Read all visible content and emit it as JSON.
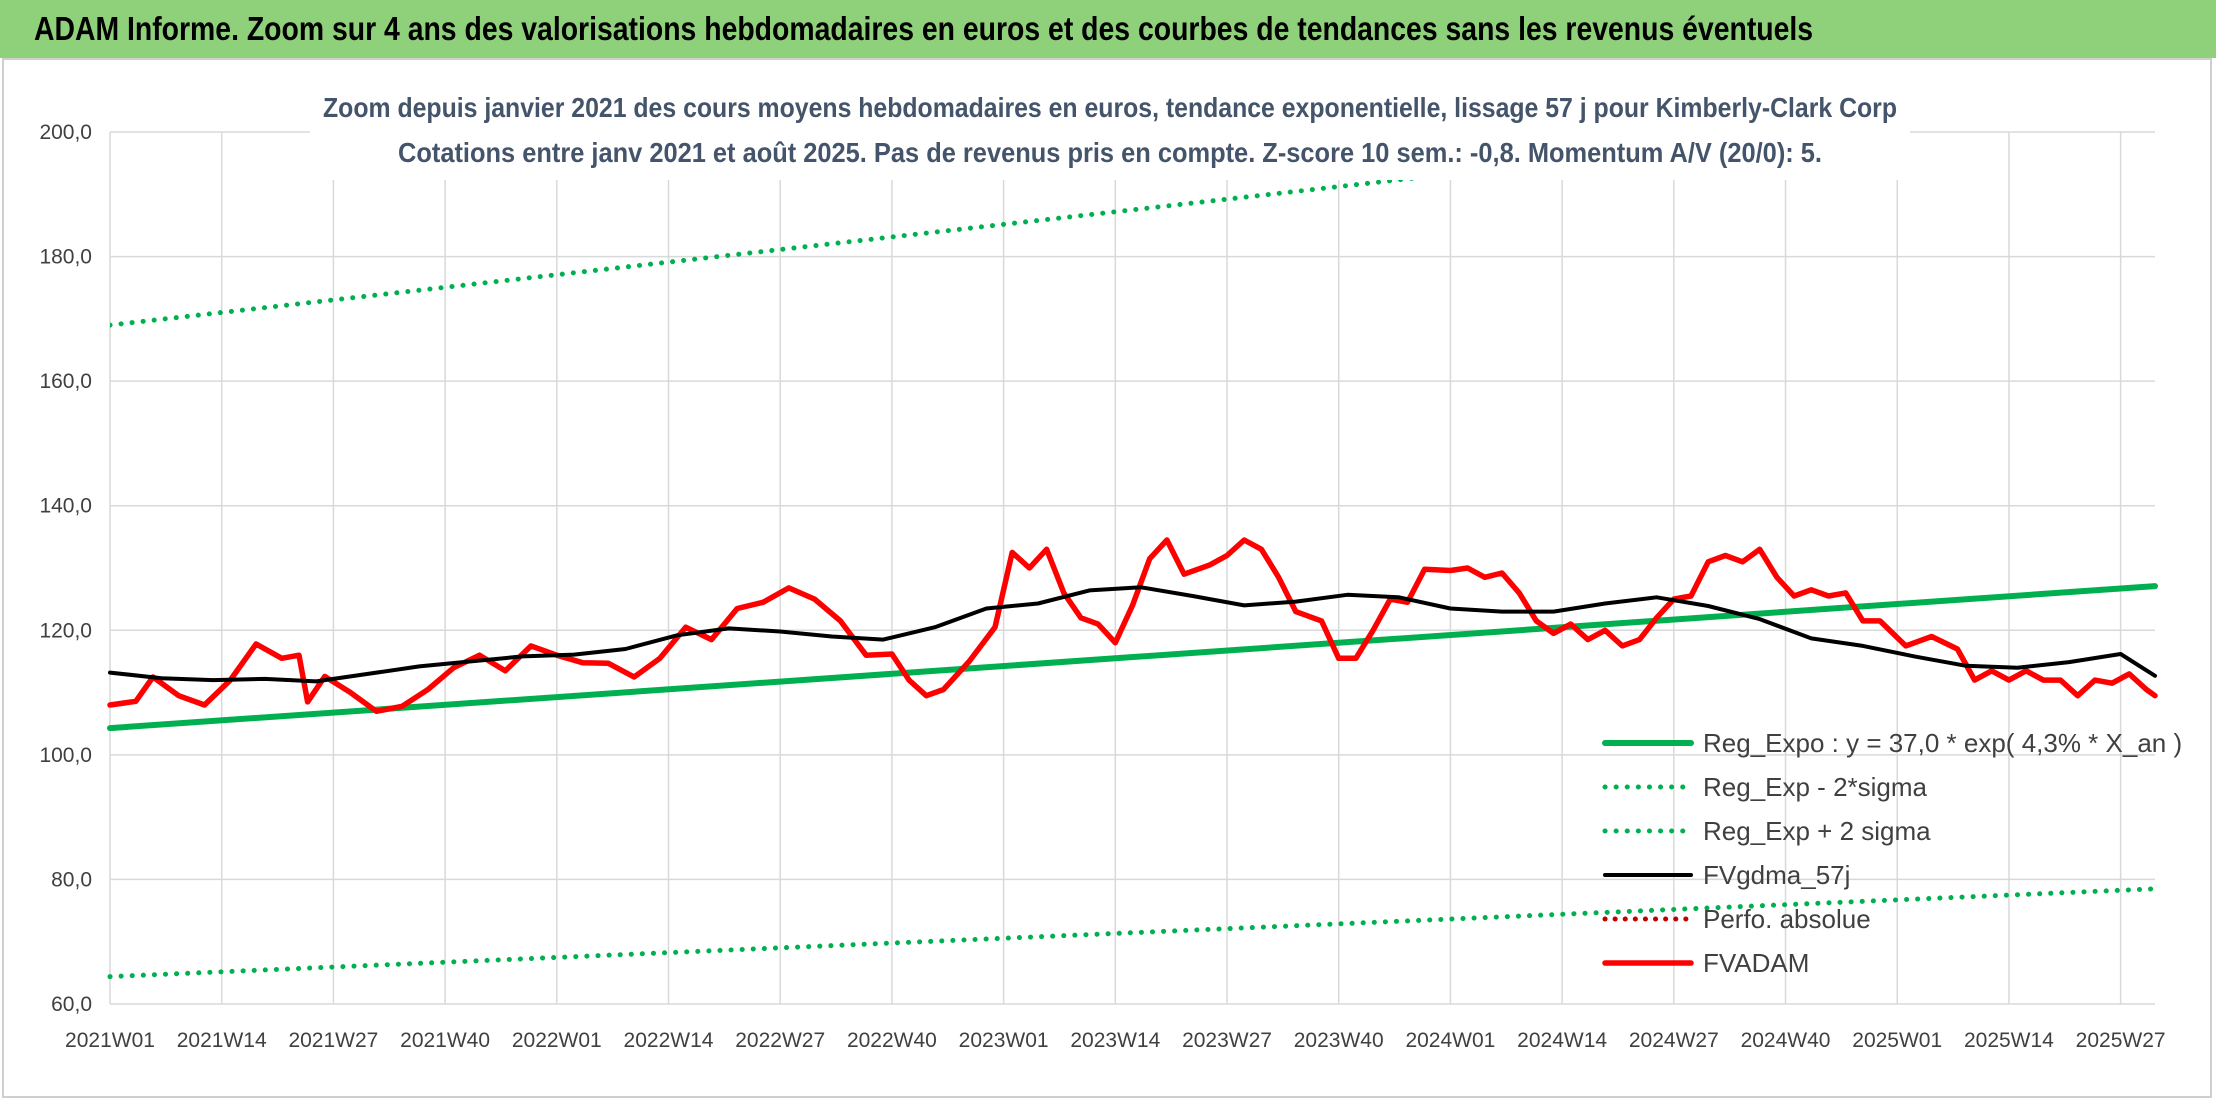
{
  "header": {
    "title": "ADAM Informe. Zoom sur 4 ans des valorisations hebdomadaires en euros et des courbes de tendances sans les revenus éventuels"
  },
  "chart_data": {
    "type": "line",
    "title_line1": "Zoom depuis janvier 2021 des cours moyens hebdomadaires en euros, tendance exponentielle, lissage 57 j pour Kimberly-Clark Corp",
    "title_line2": "Cotations entre janv 2021 et août 2025. Pas de revenus pris en compte. Z-score 10 sem.: -0,8. Momentum A/V (20/0): 5.",
    "ylim": [
      60,
      200
    ],
    "yticks": [
      "60,0",
      "80,0",
      "100,0",
      "120,0",
      "140,0",
      "160,0",
      "180,0",
      "200,0"
    ],
    "ytick_values": [
      60,
      80,
      100,
      120,
      140,
      160,
      180,
      200
    ],
    "xticks": [
      "2021W01",
      "2021W14",
      "2021W27",
      "2021W40",
      "2022W01",
      "2022W14",
      "2022W27",
      "2022W40",
      "2023W01",
      "2023W14",
      "2023W27",
      "2023W40",
      "2024W01",
      "2024W14",
      "2024W27",
      "2024W40",
      "2025W01",
      "2025W14",
      "2025W27"
    ],
    "n_weeks": 239,
    "grid": true,
    "legend_position": "lower-right",
    "colors": {
      "reg_expo": "#00b050",
      "sigma": "#00b050",
      "fvgdma": "#000000",
      "fvadam": "#ff0000",
      "perfo": "#c00000",
      "grid": "#d9d9d9"
    },
    "series": [
      {
        "name": "Reg_Expo : y = 37,0 * exp( 4,3% *  X_an )",
        "style": "solid",
        "points": [
          [
            0,
            104.3
          ],
          [
            238,
            127.1
          ]
        ]
      },
      {
        "name": "Reg_Exp - 2*sigma",
        "style": "dotted",
        "points": [
          [
            0,
            64.4
          ],
          [
            238,
            78.5
          ]
        ]
      },
      {
        "name": "Reg_Exp + 2 sigma",
        "style": "dotted",
        "points": [
          [
            0,
            169.0
          ],
          [
            238,
            206.0
          ]
        ]
      },
      {
        "name": "FVgdma_57j",
        "style": "solid",
        "points": [
          [
            0,
            113.2
          ],
          [
            6,
            112.3
          ],
          [
            12,
            112.0
          ],
          [
            18,
            112.2
          ],
          [
            24,
            111.8
          ],
          [
            30,
            113.0
          ],
          [
            36,
            114.2
          ],
          [
            42,
            115.0
          ],
          [
            48,
            115.8
          ],
          [
            54,
            116.1
          ],
          [
            60,
            117.0
          ],
          [
            66,
            119.2
          ],
          [
            72,
            120.3
          ],
          [
            78,
            119.8
          ],
          [
            84,
            119.0
          ],
          [
            90,
            118.5
          ],
          [
            96,
            120.5
          ],
          [
            102,
            123.5
          ],
          [
            108,
            124.3
          ],
          [
            114,
            126.4
          ],
          [
            120,
            126.9
          ],
          [
            126,
            125.5
          ],
          [
            132,
            124.0
          ],
          [
            138,
            124.6
          ],
          [
            144,
            125.7
          ],
          [
            150,
            125.3
          ],
          [
            156,
            123.5
          ],
          [
            162,
            123.0
          ],
          [
            168,
            123.0
          ],
          [
            174,
            124.3
          ],
          [
            180,
            125.3
          ],
          [
            186,
            123.9
          ],
          [
            192,
            121.8
          ],
          [
            198,
            118.7
          ],
          [
            204,
            117.5
          ],
          [
            210,
            115.8
          ],
          [
            216,
            114.3
          ],
          [
            222,
            114.0
          ],
          [
            228,
            114.9
          ],
          [
            234,
            116.2
          ],
          [
            238,
            112.7
          ]
        ]
      },
      {
        "name": "Perfo. absolue",
        "style": "dotted",
        "points": []
      },
      {
        "name": "FVADAM",
        "style": "solid",
        "points": [
          [
            0,
            108.0
          ],
          [
            3,
            108.6
          ],
          [
            5,
            112.5
          ],
          [
            8,
            109.5
          ],
          [
            11,
            108.0
          ],
          [
            14,
            112.0
          ],
          [
            17,
            117.8
          ],
          [
            20,
            115.5
          ],
          [
            22,
            116.0
          ],
          [
            23,
            108.5
          ],
          [
            25,
            112.6
          ],
          [
            28,
            110.0
          ],
          [
            31,
            107.0
          ],
          [
            34,
            107.8
          ],
          [
            37,
            110.5
          ],
          [
            40,
            114.0
          ],
          [
            43,
            116.0
          ],
          [
            46,
            113.5
          ],
          [
            49,
            117.5
          ],
          [
            52,
            116.0
          ],
          [
            55,
            114.8
          ],
          [
            58,
            114.7
          ],
          [
            61,
            112.5
          ],
          [
            64,
            115.5
          ],
          [
            67,
            120.5
          ],
          [
            70,
            118.5
          ],
          [
            73,
            123.5
          ],
          [
            76,
            124.5
          ],
          [
            79,
            126.8
          ],
          [
            82,
            125.0
          ],
          [
            85,
            121.5
          ],
          [
            88,
            116.0
          ],
          [
            91,
            116.2
          ],
          [
            93,
            112.0
          ],
          [
            95,
            109.5
          ],
          [
            97,
            110.5
          ],
          [
            100,
            115.0
          ],
          [
            103,
            120.5
          ],
          [
            105,
            132.5
          ],
          [
            107,
            130.0
          ],
          [
            109,
            133.0
          ],
          [
            111,
            126.0
          ],
          [
            113,
            122.0
          ],
          [
            115,
            121.0
          ],
          [
            117,
            118.0
          ],
          [
            119,
            124.0
          ],
          [
            121,
            131.5
          ],
          [
            123,
            134.5
          ],
          [
            125,
            129.0
          ],
          [
            128,
            130.5
          ],
          [
            130,
            132.0
          ],
          [
            132,
            134.5
          ],
          [
            134,
            133.0
          ],
          [
            136,
            128.5
          ],
          [
            138,
            123.0
          ],
          [
            141,
            121.5
          ],
          [
            143,
            115.5
          ],
          [
            145,
            115.5
          ],
          [
            147,
            120.0
          ],
          [
            149,
            125.0
          ],
          [
            151,
            124.5
          ],
          [
            153,
            129.8
          ],
          [
            156,
            129.6
          ],
          [
            158,
            130.0
          ],
          [
            160,
            128.5
          ],
          [
            162,
            129.2
          ],
          [
            164,
            126.0
          ],
          [
            166,
            121.5
          ],
          [
            168,
            119.5
          ],
          [
            170,
            121.0
          ],
          [
            172,
            118.5
          ],
          [
            174,
            120.0
          ],
          [
            176,
            117.5
          ],
          [
            178,
            118.5
          ],
          [
            180,
            122.0
          ],
          [
            182,
            125.0
          ],
          [
            184,
            125.5
          ],
          [
            186,
            131.0
          ],
          [
            188,
            132.0
          ],
          [
            190,
            131.0
          ],
          [
            192,
            133.0
          ],
          [
            194,
            128.5
          ],
          [
            196,
            125.5
          ],
          [
            198,
            126.5
          ],
          [
            200,
            125.5
          ],
          [
            202,
            126.0
          ],
          [
            204,
            121.5
          ],
          [
            206,
            121.5
          ],
          [
            209,
            117.5
          ],
          [
            212,
            119.0
          ],
          [
            215,
            117.0
          ],
          [
            217,
            112.0
          ],
          [
            219,
            113.5
          ],
          [
            221,
            112.0
          ],
          [
            223,
            113.5
          ],
          [
            225,
            112.0
          ],
          [
            227,
            112.0
          ],
          [
            229,
            109.5
          ],
          [
            231,
            112.0
          ],
          [
            233,
            111.5
          ],
          [
            235,
            113.0
          ],
          [
            237,
            110.5
          ],
          [
            238,
            109.5
          ]
        ]
      }
    ]
  }
}
